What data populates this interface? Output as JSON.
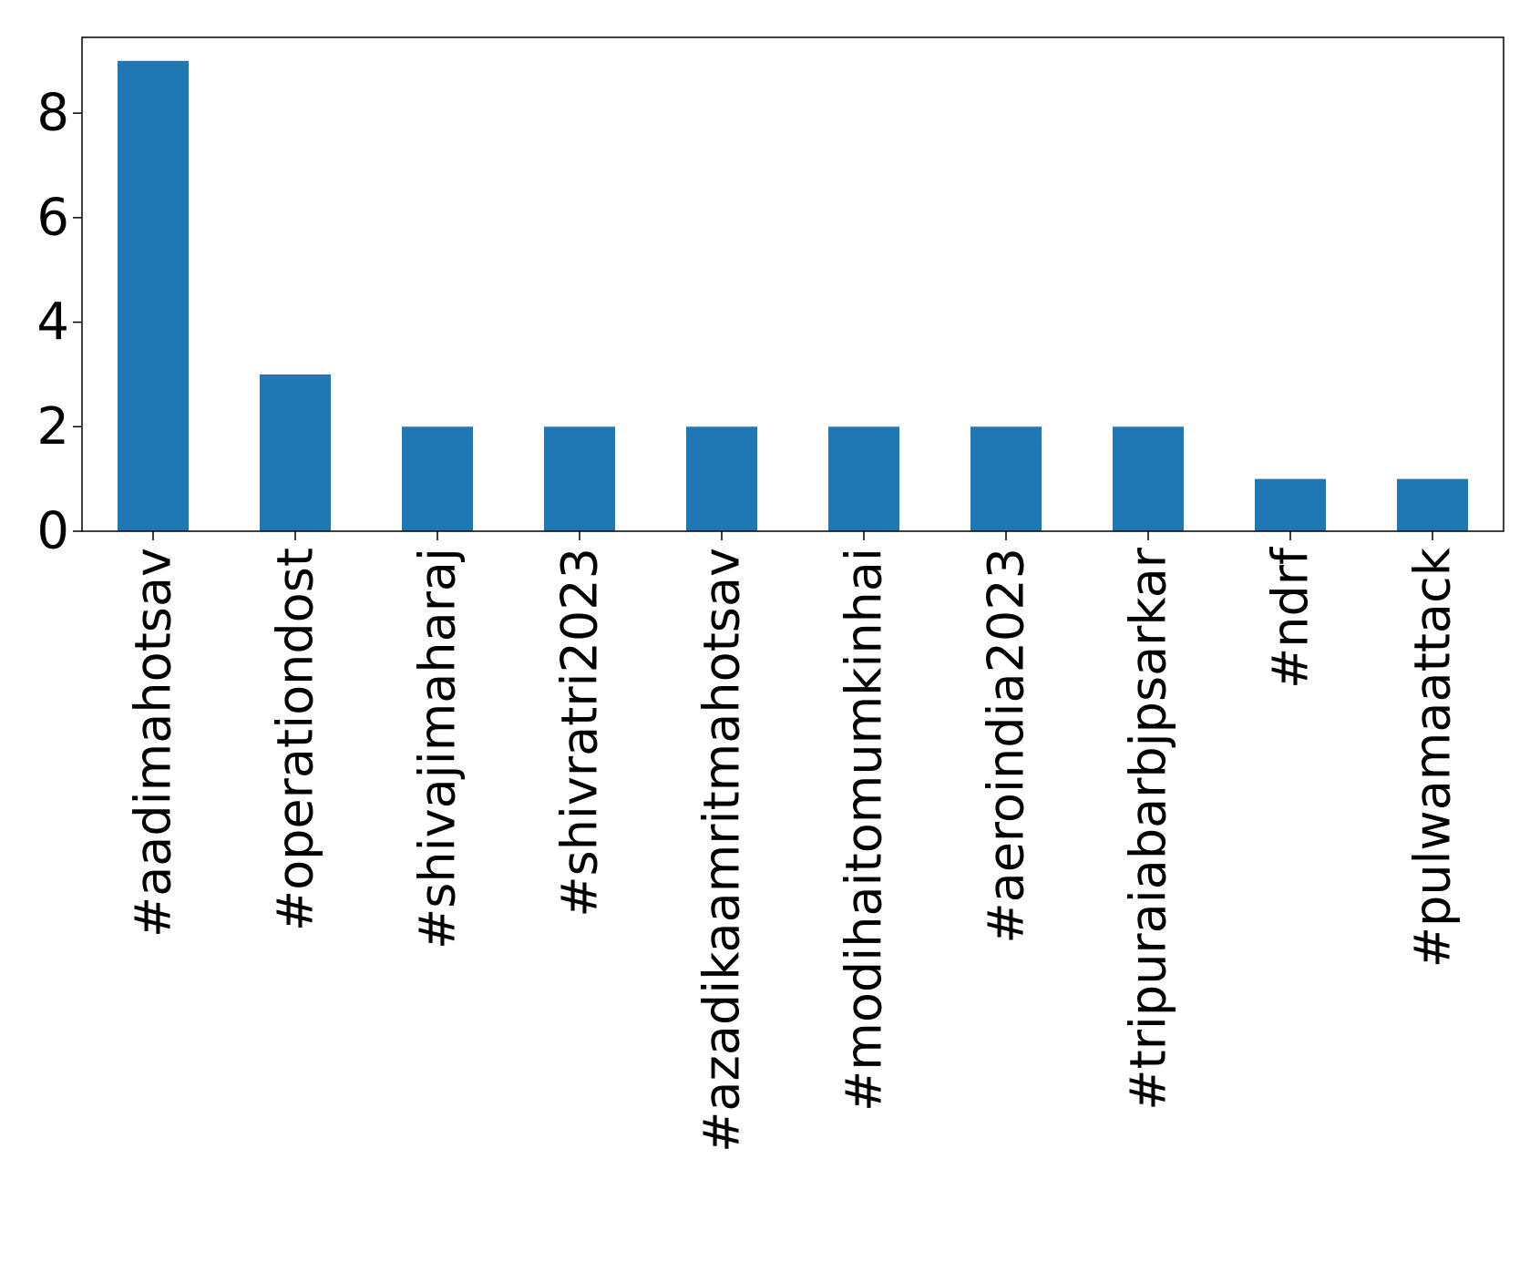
{
  "chart_data": {
    "type": "bar",
    "title": "",
    "xlabel": "",
    "ylabel": "",
    "categories": [
      "#aadimahotsav",
      "#operationdost",
      "#shivajimaharaj",
      "#shivratri2023",
      "#azadikaamritmahotsav",
      "#modihaitomumkinhai",
      "#aeroindia2023",
      "#tripuraiabarbjpsarkar",
      "#ndrf",
      "#pulwamaattack"
    ],
    "values": [
      9,
      3,
      2,
      2,
      2,
      2,
      2,
      2,
      1,
      1
    ],
    "ylim": [
      0,
      9.45
    ],
    "yticks": [
      0,
      2,
      4,
      6,
      8
    ],
    "grid": false,
    "legend": "none",
    "bar_color": "#1f77b4"
  }
}
